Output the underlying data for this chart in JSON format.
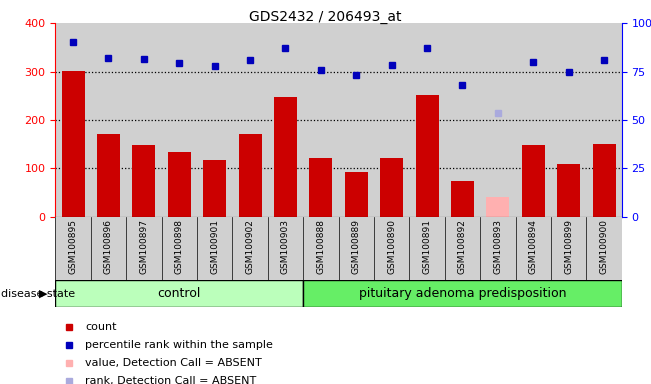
{
  "title": "GDS2432 / 206493_at",
  "samples": [
    "GSM100895",
    "GSM100896",
    "GSM100897",
    "GSM100898",
    "GSM100901",
    "GSM100902",
    "GSM100903",
    "GSM100888",
    "GSM100889",
    "GSM100890",
    "GSM100891",
    "GSM100892",
    "GSM100893",
    "GSM100894",
    "GSM100899",
    "GSM100900"
  ],
  "bar_values": [
    302,
    172,
    148,
    133,
    117,
    172,
    247,
    122,
    93,
    122,
    252,
    75,
    42,
    148,
    110,
    150
  ],
  "bar_absent": [
    false,
    false,
    false,
    false,
    false,
    false,
    false,
    false,
    false,
    false,
    false,
    false,
    true,
    false,
    false,
    false
  ],
  "dot_values": [
    90,
    82,
    81.5,
    79.5,
    78,
    81,
    87,
    76,
    73,
    78.5,
    87,
    68,
    53.5,
    80,
    75,
    81
  ],
  "dot_absent": [
    false,
    false,
    false,
    false,
    false,
    false,
    false,
    false,
    false,
    false,
    false,
    false,
    true,
    false,
    false,
    false
  ],
  "n_control": 7,
  "control_label": "control",
  "disease_label": "pituitary adenoma predisposition",
  "disease_state_label": "disease state",
  "ylim_left": [
    0,
    400
  ],
  "ylim_right": [
    0,
    100
  ],
  "yticks_left": [
    0,
    100,
    200,
    300,
    400
  ],
  "yticks_right": [
    0,
    25,
    50,
    75,
    100
  ],
  "ytick_right_labels": [
    "0",
    "25",
    "50",
    "75",
    "100%"
  ],
  "bar_color_normal": "#cc0000",
  "bar_color_absent": "#ffb0b0",
  "dot_color_normal": "#0000bb",
  "dot_color_absent": "#aaaadd",
  "bg_color": "#d0d0d0",
  "control_bg": "#bbffbb",
  "disease_bg": "#66ee66",
  "legend_items": [
    {
      "color": "#cc0000",
      "label": "count"
    },
    {
      "color": "#0000bb",
      "label": "percentile rank within the sample"
    },
    {
      "color": "#ffb0b0",
      "label": "value, Detection Call = ABSENT"
    },
    {
      "color": "#aaaadd",
      "label": "rank, Detection Call = ABSENT"
    }
  ]
}
